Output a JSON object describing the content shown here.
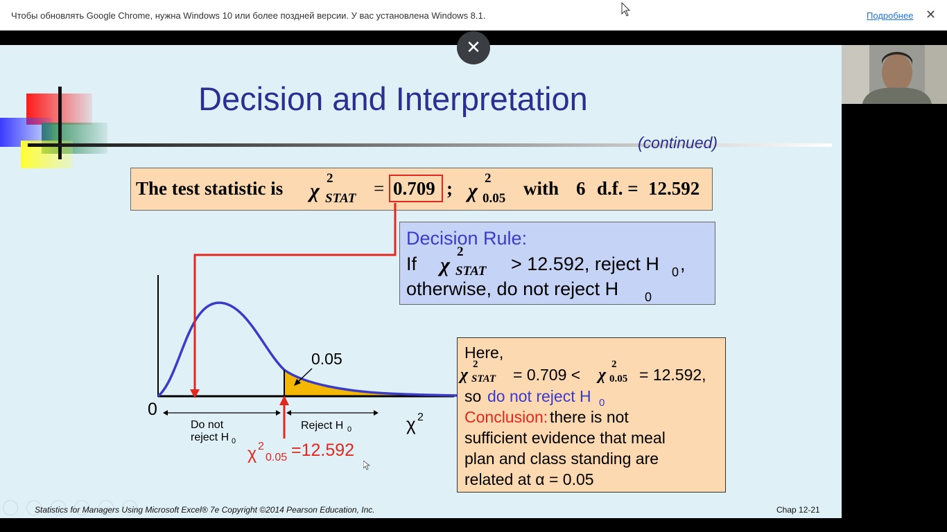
{
  "infobar": {
    "message": "Чтобы обновлять Google Chrome, нужна Windows 10 или более поздней версии. У вас установлена Windows 8.1.",
    "more_link": "Подробнее",
    "close_glyph": "✕"
  },
  "overlay": {
    "close_glyph": "✕"
  },
  "slide": {
    "title": "Decision and Interpretation",
    "continued": "(continued)",
    "test_statistic": {
      "lead": "The test statistic is",
      "chi": "χ",
      "sup": "2",
      "sub_stat": "STAT",
      "eq": "=",
      "value": "0.709",
      "semicolon": ";",
      "sub_crit": "0.05",
      "with": "with",
      "df_num": "6",
      "df": "d.f. =",
      "crit_value": "12.592"
    },
    "decision_rule": {
      "heading": "Decision Rule:",
      "if": "If",
      "chi": "χ",
      "sup": "2",
      "sub": "STAT",
      "cond": "> 12.592, reject H",
      "sub0": "0",
      "comma": ",",
      "otherwise": "otherwise, do not reject H",
      "sub0b": "0"
    },
    "chart": {
      "origin": "0",
      "alpha_label": "0.05",
      "do_not_1": "Do not",
      "do_not_2": "reject H",
      "do_not_sub": "0",
      "reject": "Reject H",
      "reject_sub": "0",
      "axis_label": "χ",
      "axis_sup": "2",
      "crit_chi": "χ",
      "crit_sup": "2",
      "crit_sub": "0.05",
      "crit_val": "=12.592"
    },
    "here_box": {
      "here": "Here,",
      "chi": "χ",
      "sup": "2",
      "sub_stat": "STAT",
      "stat_text": "= 0.709 <",
      "sub_crit": "0.05",
      "crit_text": "= 12.592,",
      "so": "so",
      "dnr": "do not reject H",
      "dnr_sub": "0",
      "conclusion": "Conclusion:",
      "line1_rest": " there is not",
      "line2": "sufficient evidence that meal",
      "line3": "plan and class standing are",
      "line4": "related at α = 0.05"
    },
    "footer_left": "Statistics for Managers Using Microsoft Excel® 7e Copyright ©2014 Pearson Education, Inc.",
    "footer_right": "Chap 12-21"
  },
  "colors": {
    "title": "#2b2f8f",
    "red": "#e0281e",
    "curve": "#3b3bc8",
    "shade": "#f5b800",
    "box_orange": "#fcd9b0",
    "box_blue": "#c5d4f6"
  }
}
